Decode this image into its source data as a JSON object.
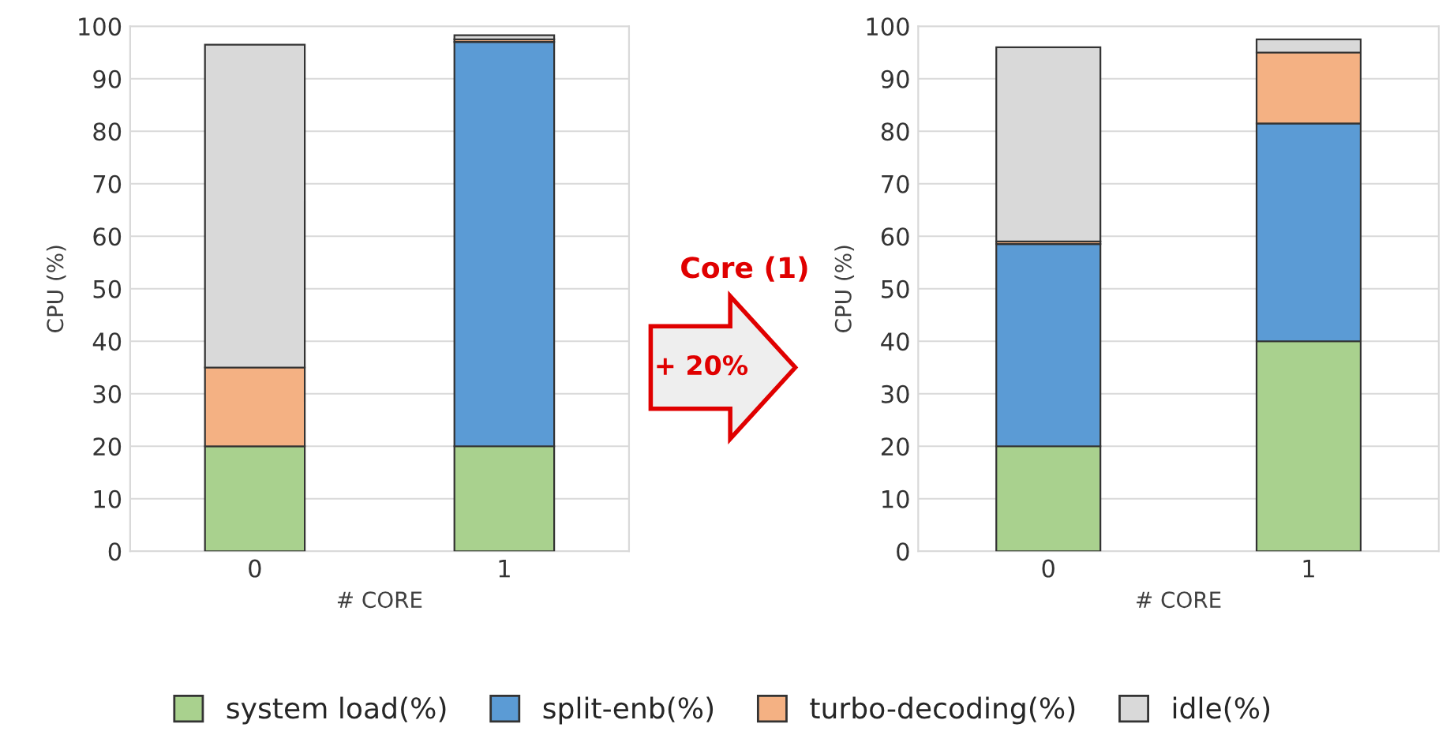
{
  "chart_data": [
    {
      "type": "bar",
      "stacked": true,
      "xlabel": "# CORE",
      "ylabel": "CPU (%)",
      "categories": [
        "0",
        "1"
      ],
      "ylim": [
        0,
        100
      ],
      "yticks": [
        0,
        10,
        20,
        30,
        40,
        50,
        60,
        70,
        80,
        90,
        100
      ],
      "grid": "y",
      "legend": "bottom",
      "series": [
        {
          "name": "system load(%)",
          "color": "#a9d18e",
          "values": [
            20,
            20
          ]
        },
        {
          "name": "split-enb(%)",
          "color": "#5b9bd5",
          "values": [
            0,
            77
          ]
        },
        {
          "name": "turbo-decoding(%)",
          "color": "#f4b183",
          "values": [
            15,
            0.5
          ]
        },
        {
          "name": "idle(%)",
          "color": "#d9d9d9",
          "values": [
            61.5,
            0.8
          ]
        }
      ]
    },
    {
      "type": "bar",
      "stacked": true,
      "xlabel": "# CORE",
      "ylabel": "CPU (%)",
      "categories": [
        "0",
        "1"
      ],
      "ylim": [
        0,
        100
      ],
      "yticks": [
        0,
        10,
        20,
        30,
        40,
        50,
        60,
        70,
        80,
        90,
        100
      ],
      "grid": "y",
      "legend": "bottom",
      "annotations": [
        "Core (1)",
        "+ 20%"
      ],
      "series": [
        {
          "name": "system load(%)",
          "color": "#a9d18e",
          "values": [
            20,
            40
          ]
        },
        {
          "name": "split-enb(%)",
          "color": "#5b9bd5",
          "values": [
            38.5,
            41.5
          ]
        },
        {
          "name": "turbo-decoding(%)",
          "color": "#f4b183",
          "values": [
            0.5,
            13.5
          ]
        },
        {
          "name": "idle(%)",
          "color": "#d9d9d9",
          "values": [
            37,
            2.5
          ]
        }
      ]
    }
  ]
}
